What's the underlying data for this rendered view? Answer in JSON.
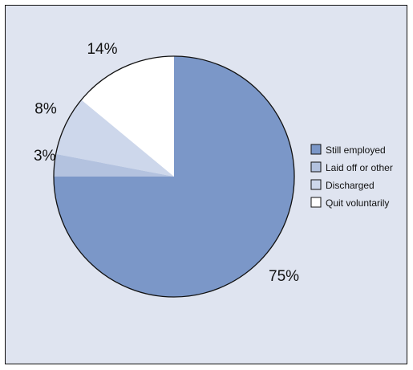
{
  "chart_data": {
    "type": "pie",
    "title": "",
    "slices": [
      {
        "label": "Still employed",
        "value": 75,
        "value_label": "75%",
        "color": "#7b97c8"
      },
      {
        "label": "Laid off or other",
        "value": 3,
        "value_label": "3%",
        "color": "#b3c2df"
      },
      {
        "label": "Discharged",
        "value": 8,
        "value_label": "8%",
        "color": "#cdd7eb"
      },
      {
        "label": "Quit voluntarily",
        "value": 14,
        "value_label": "14%",
        "color": "#ffffff"
      }
    ],
    "legend_position": "right",
    "background_color": "#dfe4f0",
    "outline_color": "#111111"
  }
}
